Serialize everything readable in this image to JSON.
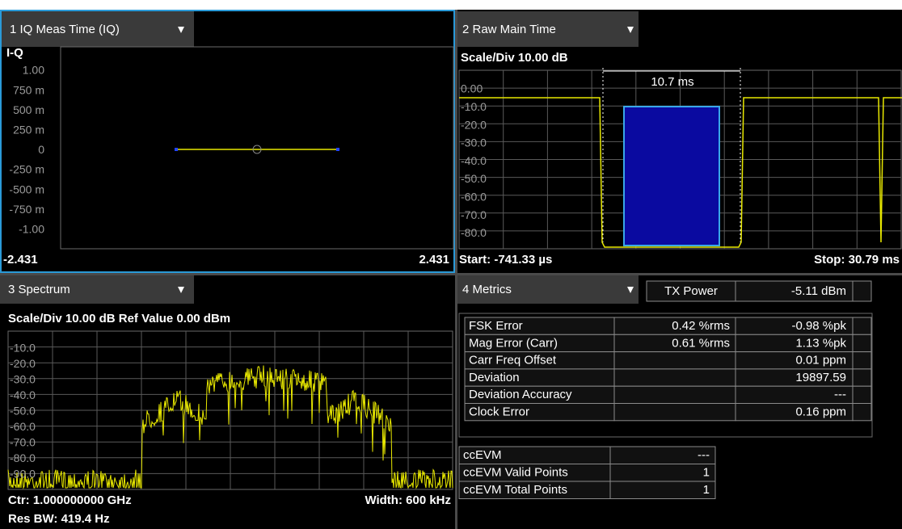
{
  "panels": [
    {
      "title": "1 IQ Meas Time (IQ)",
      "axis_label": "I-Q",
      "y_labels": [
        "1.00",
        "750 m",
        "500 m",
        "250 m",
        "0",
        "-250 m",
        "-500 m",
        "-750 m",
        "-1.00"
      ],
      "x_min": "-2.431",
      "x_max": "2.431"
    },
    {
      "title": "2 Raw Main Time",
      "scale": "Scale/Div 10.00 dB",
      "y_labels": [
        "0.00",
        "-10.0",
        "-20.0",
        "-30.0",
        "-40.0",
        "-50.0",
        "-60.0",
        "-70.0",
        "-80.0"
      ],
      "marker": "10.7 ms",
      "start": "Start: -741.33 µs",
      "stop": "Stop: 30.79 ms"
    },
    {
      "title": "3 Spectrum",
      "scale": "Scale/Div 10.00 dB Ref Value 0.00 dBm",
      "y_labels": [
        "-10.0",
        "-20.0",
        "-30.0",
        "-40.0",
        "-50.0",
        "-60.0",
        "-70.0",
        "-80.0",
        "-90.0"
      ],
      "center": "Ctr: 1.000000000 GHz",
      "width": "Width: 600 kHz",
      "res_bw": "Res BW: 419.4 Hz"
    },
    {
      "title": "4 Metrics",
      "tx_power": {
        "label": "TX Power",
        "value": "-5.11 dBm"
      },
      "metrics": [
        {
          "label": "FSK Error",
          "rms": "0.42 %rms",
          "value": "-0.98 %pk"
        },
        {
          "label": "Mag Error (Carr)",
          "rms": "0.61 %rms",
          "value": "1.13 %pk"
        },
        {
          "label": "Carr Freq Offset",
          "value": "0.01 ppm"
        },
        {
          "label": "Deviation",
          "value": "19897.59"
        },
        {
          "label": "Deviation Accuracy",
          "value": "---"
        },
        {
          "label": "Clock Error",
          "value": "0.16 ppm"
        }
      ],
      "ccevm": [
        {
          "label": "ccEVM",
          "value": "---"
        },
        {
          "label": "ccEVM Valid Points",
          "value": "1"
        },
        {
          "label": "ccEVM Total Points",
          "value": "1"
        }
      ]
    }
  ]
}
